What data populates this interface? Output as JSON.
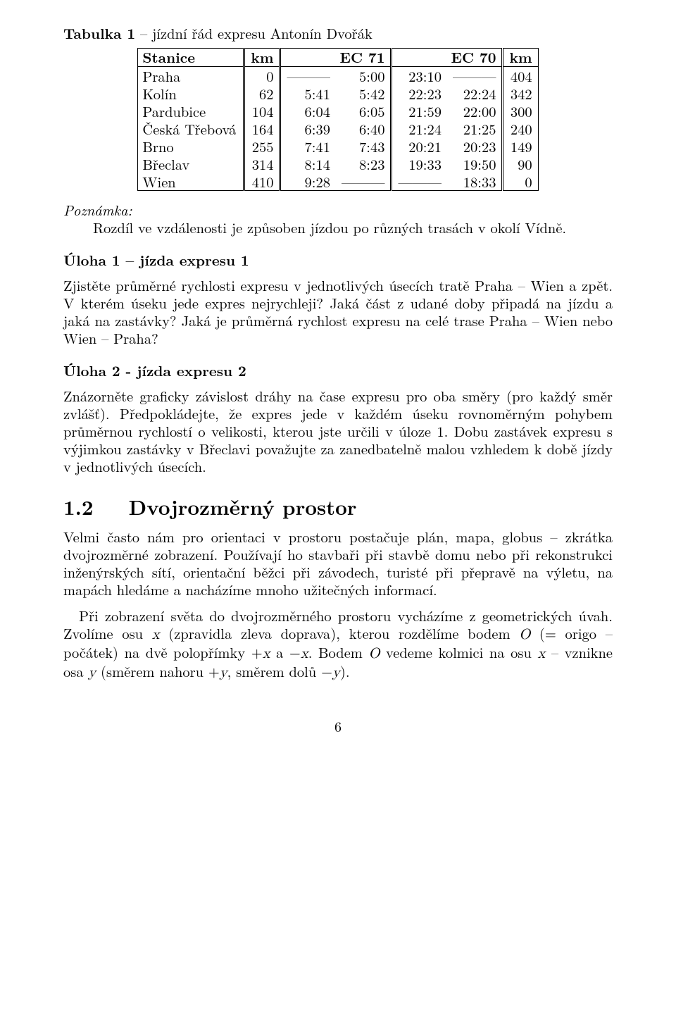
{
  "table": {
    "caption_label": "Tabulka 1",
    "caption_sep": " – ",
    "caption_text": "jízdní řád expresu Antonín Dvořák",
    "headers": [
      "Stanice",
      "km",
      "EC 71",
      "EC 70",
      "km"
    ],
    "rows": [
      {
        "stanice": "Praha",
        "km1": "0",
        "ec71_arr": " ",
        "ec71_dep": "5:00",
        "ec70_arr": "23:10",
        "ec70_dep": " ",
        "km2": "404"
      },
      {
        "stanice": "Kolín",
        "km1": "62",
        "ec71_arr": "5:41",
        "ec71_dep": "5:42",
        "ec70_arr": "22:23",
        "ec70_dep": "22:24",
        "km2": "342"
      },
      {
        "stanice": "Pardubice",
        "km1": "104",
        "ec71_arr": "6:04",
        "ec71_dep": "6:05",
        "ec70_arr": "21:59",
        "ec70_dep": "22:00",
        "km2": "300"
      },
      {
        "stanice": "Česká Třebová",
        "km1": "164",
        "ec71_arr": "6:39",
        "ec71_dep": "6:40",
        "ec70_arr": "21:24",
        "ec70_dep": "21:25",
        "km2": "240"
      },
      {
        "stanice": "Brno",
        "km1": "255",
        "ec71_arr": "7:41",
        "ec71_dep": "7:43",
        "ec70_arr": "20:21",
        "ec70_dep": "20:23",
        "km2": "149"
      },
      {
        "stanice": "Břeclav",
        "km1": "314",
        "ec71_arr": "8:14",
        "ec71_dep": "8:23",
        "ec70_arr": "19:33",
        "ec70_dep": "19:50",
        "km2": "90"
      },
      {
        "stanice": "Wien",
        "km1": "410",
        "ec71_arr": "9:28",
        "ec71_dep": " ",
        "ec70_arr": " ",
        "ec70_dep": "18:33",
        "km2": "0"
      }
    ]
  },
  "note": {
    "label": "Poznámka:",
    "body": "Rozdíl ve vzdálenosti je způsoben jízdou po různých trasách v okolí Vídně."
  },
  "uloha1": {
    "heading": "Úloha 1 – jízda expresu 1",
    "body": "Zjistěte průměrné rychlosti expresu v jednotlivých úsecích tratě Praha – Wien a zpět. V kterém úseku jede expres nejrychleji? Jaká část z udané doby připadá na jízdu a jaká na zastávky? Jaká je průměrná rychlost expresu na celé trase Praha – Wien nebo Wien – Praha?"
  },
  "uloha2": {
    "heading": "Úloha 2 - jízda expresu 2",
    "body": "Znázorněte graficky závislost dráhy na čase expresu pro oba směry (pro každý směr zvlášť). Předpokládejte, že expres jede v každém úseku rovnoměrným pohybem průměrnou rychlostí o velikosti, kterou jste určili v úloze 1. Dobu zastávek expresu s výjimkou zastávky v Břeclavi považujte za zanedbatelně malou vzhledem k době jízdy v jednotlivých úsecích."
  },
  "section": {
    "number": "1.2",
    "title": "Dvojrozměrný prostor",
    "p1": "Velmi často nám pro orientaci v prostoru postačuje plán, mapa, globus – zkrátka dvojrozměrné zobrazení. Používají ho stavbaři při stavbě domu nebo při rekonstrukci inženýrských sítí, orientační běžci při závodech, turisté při přepravě na výletu, na mapách hledáme a nacházíme mnoho užitečných informací.",
    "p2_parts": {
      "a": "Při zobrazení světa do dvojrozměrného prostoru vycházíme z geometrických úvah. Zvolíme osu ",
      "x": "x",
      "b": " (zpravidla zleva doprava), kterou rozdělíme bodem ",
      "O": "O",
      "c": " (= origo – počátek) na dvě polopřímky +",
      "x2": "x",
      "d": " a −",
      "x3": "x",
      "e": ". Bodem ",
      "O2": "O",
      "f": " vedeme kolmici na osu ",
      "x4": "x",
      "g": " – vznikne osa ",
      "y": "y",
      "h": " (směrem nahoru +",
      "y2": "y",
      "i": ", směrem dolů −",
      "y3": "y",
      "j": ")."
    }
  },
  "pagenum": "6",
  "longdash": "———"
}
